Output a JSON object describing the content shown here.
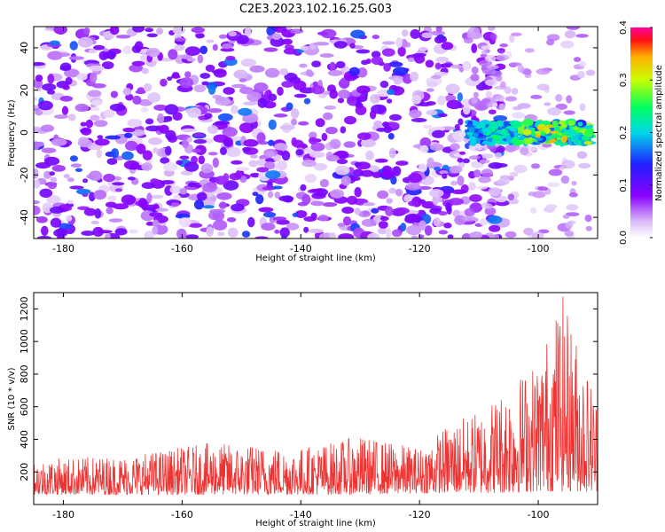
{
  "title": "C2E3.2023.102.16.25.G03",
  "chart_data": [
    {
      "type": "heatmap",
      "xlabel": "Height of straight line (km)",
      "ylabel": "Frequency (Hz)",
      "xlim": [
        -185,
        -90
      ],
      "ylim": [
        -50,
        50
      ],
      "xticks": [
        -180,
        -160,
        -140,
        -120,
        -100
      ],
      "yticks": [
        -40,
        -20,
        0,
        20,
        40
      ],
      "colorbar": {
        "label": "Normalized spectral amplitude",
        "range": [
          0.0,
          0.4
        ],
        "ticks": [
          "0.0",
          "0.1",
          "0.2",
          "0.3",
          "0.4"
        ]
      },
      "noise": {
        "x_range": [
          -185,
          -112
        ],
        "y_range": [
          -50,
          50
        ],
        "typical_amplitude": 0.05
      },
      "signal_band": {
        "x_range": [
          -112,
          -91
        ],
        "center_hz": 0,
        "half_width_hz": 5,
        "peak_amplitude": 0.4,
        "peak_x": -97
      }
    },
    {
      "type": "line",
      "xlabel": "Height of straight line (km)",
      "ylabel": "SNR (10 * v/v)",
      "xlim": [
        -185,
        -90
      ],
      "ylim": [
        0,
        1300
      ],
      "xticks": [
        -180,
        -160,
        -140,
        -120,
        -100
      ],
      "yticks": [
        200,
        400,
        600,
        800,
        1000,
        1200
      ],
      "color": "#ee3333",
      "envelope": [
        {
          "x": -185,
          "low": 60,
          "high": 280
        },
        {
          "x": -170,
          "low": 60,
          "high": 300
        },
        {
          "x": -155,
          "low": 60,
          "high": 380
        },
        {
          "x": -140,
          "low": 60,
          "high": 350
        },
        {
          "x": -130,
          "low": 60,
          "high": 420
        },
        {
          "x": -120,
          "low": 70,
          "high": 350
        },
        {
          "x": -115,
          "low": 70,
          "high": 500
        },
        {
          "x": -110,
          "low": 70,
          "high": 580
        },
        {
          "x": -105,
          "low": 70,
          "high": 750
        },
        {
          "x": -100,
          "low": 80,
          "high": 900
        },
        {
          "x": -96,
          "low": 80,
          "high": 1300
        },
        {
          "x": -90,
          "low": 80,
          "high": 650
        }
      ]
    }
  ]
}
